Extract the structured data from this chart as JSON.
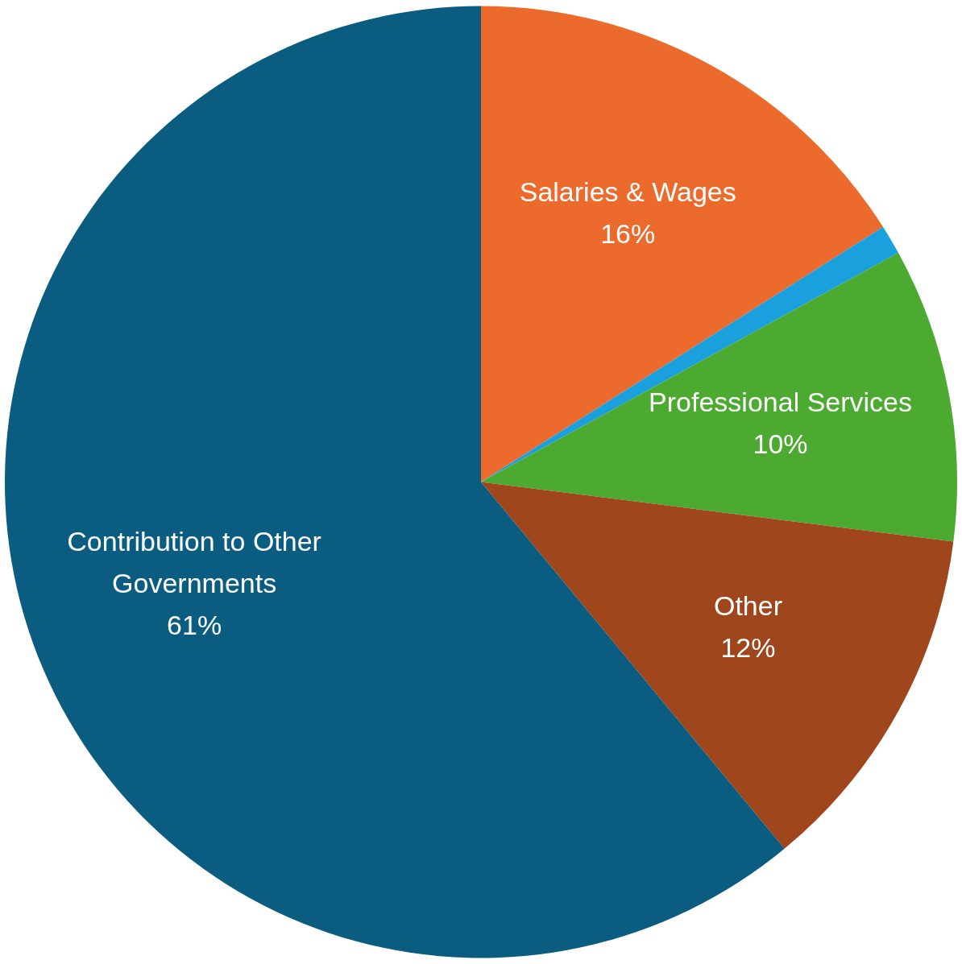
{
  "chart_data": {
    "type": "pie",
    "categories": [
      "Salaries & Wages",
      null,
      "Professional Services",
      "Other",
      "Contribution to Other Governments"
    ],
    "values": [
      16,
      1,
      10,
      12,
      61
    ],
    "value_labels": [
      "16%",
      null,
      "10%",
      "12%",
      "61%"
    ],
    "colors": [
      "#ec6a2c",
      "#1aa0dc",
      "#4caa30",
      "#a0461c",
      "#0a5c80"
    ],
    "legend": false
  }
}
